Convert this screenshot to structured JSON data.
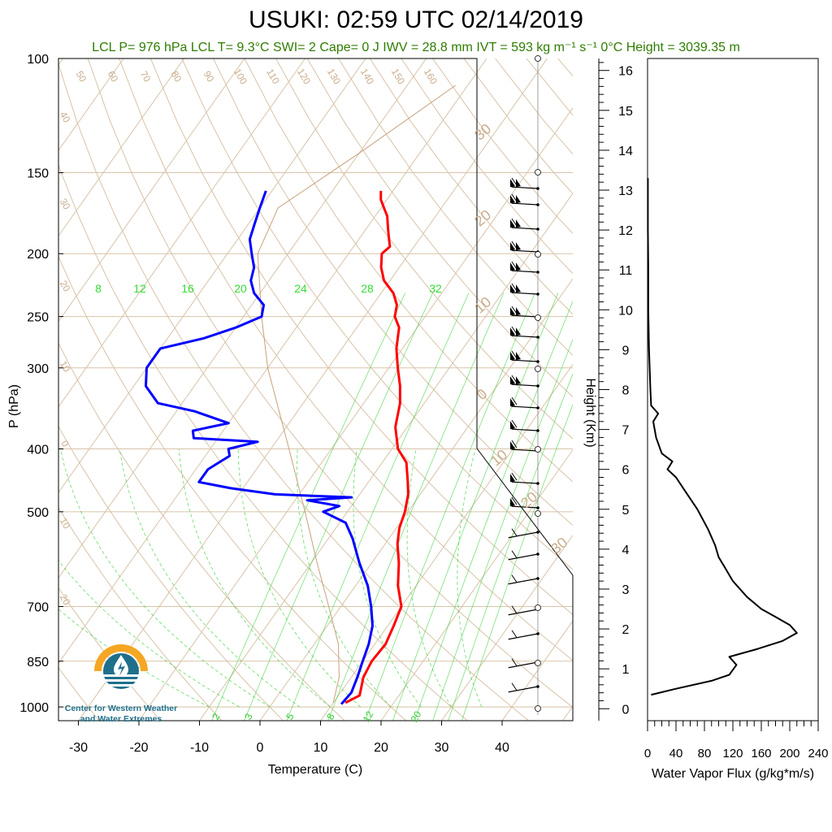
{
  "title": "USUKI: 02:59 UTC 02/14/2019",
  "subtitle": "LCL P= 976 hPa  LCL T= 9.3°C  SWI= 2  Cape= 0 J  IWV = 28.8 mm  IVT = 593 kg m⁻¹ s⁻¹  0°C Height = 3039.35 m",
  "logo": {
    "line1": "Center for Western Weather",
    "line2": "and Water Extremes"
  },
  "colors": {
    "temperature": "#ff0000",
    "dewpoint": "#0000ff",
    "isotherm": "#d8c3a8",
    "mixing_ratio": "#22cc22",
    "subtitle": "#2e7d00",
    "logo_orange": "#f5a623",
    "logo_blue": "#1f6f8b"
  },
  "chart_data": [
    {
      "type": "line",
      "kind": "skew-t log-p sounding",
      "xlabel": "Temperature (C)",
      "ylabel": "P (hPa)",
      "xlim": [
        -35,
        50
      ],
      "ylim": [
        1050,
        100
      ],
      "y_scale": "log",
      "x_ticks": [
        "-30",
        "-20",
        "-10",
        "0",
        "10",
        "20",
        "30",
        "40"
      ],
      "y_ticks": [
        "100",
        "150",
        "200",
        "250",
        "300",
        "400",
        "500",
        "700",
        "850",
        "1000"
      ],
      "y_tick_values": [
        100,
        150,
        200,
        250,
        300,
        400,
        500,
        700,
        850,
        1000
      ],
      "mixing_ratio_top_labels": [
        "8",
        "12",
        "16",
        "20",
        "24",
        "28",
        "32"
      ],
      "mixing_ratio_bottom_labels": [
        "2",
        "3",
        "5",
        "8",
        "12",
        "20"
      ],
      "adiabat_labels": [
        "50",
        "60",
        "70",
        "80",
        "90",
        "100",
        "110",
        "120",
        "130",
        "140",
        "150",
        "160"
      ],
      "isotherm_side_labels": [
        "40",
        "30",
        "20",
        "10",
        "0",
        "10",
        "20"
      ],
      "right_edge_labels": [
        "30",
        "20",
        "10",
        "0",
        "10",
        "20",
        "30"
      ],
      "series": [
        {
          "name": "Temperature",
          "points": [
            [
              12,
              985
            ],
            [
              13.5,
              960
            ],
            [
              12,
              900
            ],
            [
              11.5,
              850
            ],
            [
              11.8,
              800
            ],
            [
              11,
              750
            ],
            [
              10,
              700
            ],
            [
              7,
              650
            ],
            [
              4.5,
              600
            ],
            [
              2,
              560
            ],
            [
              0.5,
              530
            ],
            [
              -0.5,
              500
            ],
            [
              -2,
              470
            ],
            [
              -3.5,
              450
            ],
            [
              -6,
              420
            ],
            [
              -9,
              400
            ],
            [
              -12,
              370
            ],
            [
              -14,
              340
            ],
            [
              -16,
              320
            ],
            [
              -18.5,
              300
            ],
            [
              -21,
              280
            ],
            [
              -23,
              260
            ],
            [
              -25,
              250
            ],
            [
              -26,
              240
            ],
            [
              -28,
              230
            ],
            [
              -31,
              220
            ],
            [
              -33,
              210
            ],
            [
              -34.5,
              200
            ],
            [
              -34,
              195
            ],
            [
              -35,
              190
            ],
            [
              -36,
              185
            ],
            [
              -37,
              180
            ],
            [
              -38,
              175
            ],
            [
              -39.5,
              170
            ],
            [
              -41,
              165
            ],
            [
              -42,
              160
            ]
          ]
        },
        {
          "name": "Dewpoint",
          "points": [
            [
              11.5,
              990
            ],
            [
              11.8,
              950
            ],
            [
              11,
              900
            ],
            [
              10,
              850
            ],
            [
              9,
              800
            ],
            [
              7.5,
              750
            ],
            [
              5,
              700
            ],
            [
              2,
              650
            ],
            [
              -2,
              600
            ],
            [
              -6,
              550
            ],
            [
              -9,
              520
            ],
            [
              -14,
              500
            ],
            [
              -12,
              490
            ],
            [
              -18,
              480
            ],
            [
              -11,
              475
            ],
            [
              -24,
              470
            ],
            [
              -32,
              460
            ],
            [
              -38,
              450
            ],
            [
              -38,
              430
            ],
            [
              -37,
              420
            ],
            [
              -36,
              410
            ],
            [
              -37,
              400
            ],
            [
              -33,
              390
            ],
            [
              -44,
              385
            ],
            [
              -45,
              375
            ],
            [
              -40,
              365
            ],
            [
              -47,
              350
            ],
            [
              -54,
              340
            ],
            [
              -58,
              320
            ],
            [
              -60,
              300
            ],
            [
              -60,
              280
            ],
            [
              -54,
              270
            ],
            [
              -50,
              260
            ],
            [
              -47,
              250
            ],
            [
              -48,
              240
            ],
            [
              -51,
              230
            ],
            [
              -53,
              220
            ],
            [
              -54,
              210
            ],
            [
              -56,
              200
            ],
            [
              -58,
              190
            ],
            [
              -59,
              180
            ],
            [
              -60,
              170
            ],
            [
              -61,
              160
            ]
          ]
        }
      ]
    },
    {
      "type": "line",
      "kind": "water vapor flux profile",
      "xlabel": "Water Vapor Flux (g/kg*m/s)",
      "ylabel": "Height (Km)",
      "xlim": [
        0,
        240
      ],
      "ylim": [
        -0.3,
        16.3
      ],
      "x_ticks": [
        "0",
        "40",
        "80",
        "120",
        "160",
        "200",
        "240"
      ],
      "y_ticks": [
        "0",
        "1",
        "2",
        "3",
        "4",
        "5",
        "6",
        "7",
        "8",
        "9",
        "10",
        "11",
        "12",
        "13",
        "14",
        "15",
        "16"
      ],
      "series": [
        {
          "points": [
            [
              5,
              0.35
            ],
            [
              40,
              0.5
            ],
            [
              90,
              0.7
            ],
            [
              115,
              0.85
            ],
            [
              125,
              1.1
            ],
            [
              115,
              1.3
            ],
            [
              155,
              1.5
            ],
            [
              190,
              1.7
            ],
            [
              210,
              1.9
            ],
            [
              200,
              2.1
            ],
            [
              180,
              2.3
            ],
            [
              160,
              2.5
            ],
            [
              140,
              2.8
            ],
            [
              120,
              3.2
            ],
            [
              110,
              3.5
            ],
            [
              100,
              3.8
            ],
            [
              95,
              4.1
            ],
            [
              85,
              4.5
            ],
            [
              70,
              5
            ],
            [
              55,
              5.4
            ],
            [
              40,
              5.8
            ],
            [
              28,
              6.0
            ],
            [
              35,
              6.2
            ],
            [
              20,
              6.4
            ],
            [
              12,
              6.8
            ],
            [
              8,
              7.2
            ],
            [
              15,
              7.4
            ],
            [
              5,
              7.6
            ],
            [
              4,
              8
            ],
            [
              2,
              9
            ],
            [
              1,
              10
            ],
            [
              1,
              11
            ],
            [
              0.5,
              12
            ],
            [
              0.5,
              13.3
            ]
          ]
        }
      ]
    }
  ]
}
